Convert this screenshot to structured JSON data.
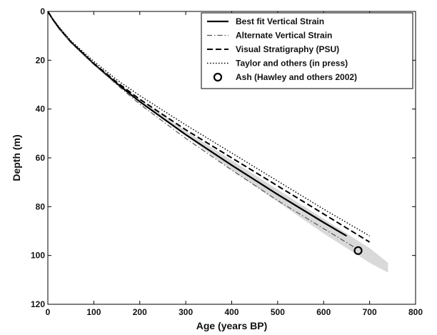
{
  "chart_data": {
    "type": "line",
    "xlabel": "Age (years BP)",
    "ylabel": "Depth (m)",
    "xlim": [
      0,
      800
    ],
    "ylim": [
      0,
      120
    ],
    "y_reversed": true,
    "xticks": [
      "0",
      "100",
      "200",
      "300",
      "400",
      "500",
      "600",
      "700",
      "800"
    ],
    "yticks": [
      "0",
      "20",
      "40",
      "60",
      "80",
      "100",
      "120"
    ],
    "grid": false,
    "legend_position": "top-right",
    "uncertainty_band": {
      "color": "#d9d9d9",
      "upper": [
        [
          0,
          0
        ],
        [
          50,
          12
        ],
        [
          100,
          21
        ],
        [
          150,
          29
        ],
        [
          200,
          37
        ],
        [
          300,
          51
        ],
        [
          400,
          65
        ],
        [
          500,
          78
        ],
        [
          600,
          91
        ],
        [
          700,
          103
        ],
        [
          740,
          107
        ]
      ],
      "lower": [
        [
          0,
          0
        ],
        [
          50,
          12
        ],
        [
          100,
          21
        ],
        [
          150,
          29
        ],
        [
          200,
          36
        ],
        [
          300,
          49
        ],
        [
          400,
          61
        ],
        [
          500,
          73
        ],
        [
          600,
          85
        ],
        [
          700,
          97
        ],
        [
          740,
          103
        ]
      ]
    },
    "series": [
      {
        "name": "Best fit Vertical Strain",
        "style": "solid",
        "color": "#000000",
        "points": [
          [
            0,
            0
          ],
          [
            10,
            3
          ],
          [
            25,
            7
          ],
          [
            50,
            12.5
          ],
          [
            100,
            21.5
          ],
          [
            150,
            29.5
          ],
          [
            200,
            37
          ],
          [
            300,
            50.5
          ],
          [
            400,
            63
          ],
          [
            500,
            75
          ],
          [
            600,
            86.5
          ],
          [
            650,
            92
          ]
        ]
      },
      {
        "name": "Alternate Vertical Strain",
        "style": "dashdot",
        "color": "#555555",
        "points": [
          [
            0,
            0
          ],
          [
            10,
            3
          ],
          [
            25,
            7
          ],
          [
            50,
            12.5
          ],
          [
            100,
            21.7
          ],
          [
            150,
            30
          ],
          [
            200,
            38
          ],
          [
            300,
            52
          ],
          [
            400,
            65
          ],
          [
            500,
            77.5
          ],
          [
            600,
            89
          ],
          [
            670,
            97
          ]
        ]
      },
      {
        "name": "Visual Stratigraphy (PSU)",
        "style": "dashed",
        "color": "#000000",
        "points": [
          [
            0,
            0
          ],
          [
            10,
            3
          ],
          [
            25,
            7
          ],
          [
            50,
            12.5
          ],
          [
            100,
            21.3
          ],
          [
            150,
            29
          ],
          [
            200,
            36
          ],
          [
            300,
            48.5
          ],
          [
            400,
            60
          ],
          [
            500,
            71.5
          ],
          [
            600,
            83
          ],
          [
            700,
            94.5
          ]
        ]
      },
      {
        "name": "Taylor and others (in press)",
        "style": "dotted",
        "color": "#000000",
        "points": [
          [
            0,
            0
          ],
          [
            10,
            3
          ],
          [
            25,
            6.5
          ],
          [
            50,
            12
          ],
          [
            100,
            20.5
          ],
          [
            150,
            28
          ],
          [
            200,
            34.5
          ],
          [
            300,
            46.5
          ],
          [
            400,
            58
          ],
          [
            500,
            69.5
          ],
          [
            600,
            81
          ],
          [
            700,
            92
          ]
        ]
      }
    ],
    "markers": [
      {
        "name": "Ash (Hawley and others 2002)",
        "shape": "circle",
        "x": 675,
        "y": 98
      }
    ]
  }
}
